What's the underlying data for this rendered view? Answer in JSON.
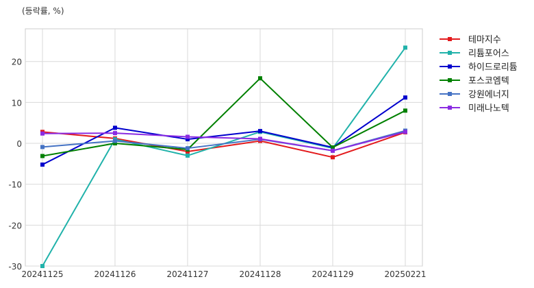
{
  "chart_data": {
    "type": "line",
    "unit_label": "(등락률, %)",
    "categories": [
      "20241125",
      "20241126",
      "20241127",
      "20241128",
      "20241129",
      "20250221"
    ],
    "ylim": [
      -30,
      28
    ],
    "yticks": [
      -30,
      -20,
      -10,
      0,
      10,
      20
    ],
    "grid": true,
    "legend_position": "right",
    "series": [
      {
        "name": "테마지수",
        "color": "#e31a1c",
        "values": [
          2.8,
          1.2,
          -2.0,
          0.6,
          -3.4,
          2.7
        ]
      },
      {
        "name": "리튬포어스",
        "color": "#20b2aa",
        "values": [
          -30.0,
          1.0,
          -3.0,
          2.8,
          -1.2,
          23.4
        ]
      },
      {
        "name": "하이드로리튬",
        "color": "#0000cd",
        "values": [
          -5.2,
          3.8,
          1.0,
          3.0,
          -1.0,
          11.2
        ]
      },
      {
        "name": "포스코엠텍",
        "color": "#008000",
        "values": [
          -3.1,
          0.0,
          -1.5,
          15.9,
          -1.0,
          8.0
        ]
      },
      {
        "name": "강원에너지",
        "color": "#4472c4",
        "values": [
          -0.9,
          0.6,
          -1.2,
          1.0,
          -1.8,
          3.1
        ]
      },
      {
        "name": "미래나노텍",
        "color": "#8a2be2",
        "values": [
          2.4,
          2.5,
          1.6,
          1.1,
          -1.8,
          2.8
        ]
      }
    ]
  }
}
